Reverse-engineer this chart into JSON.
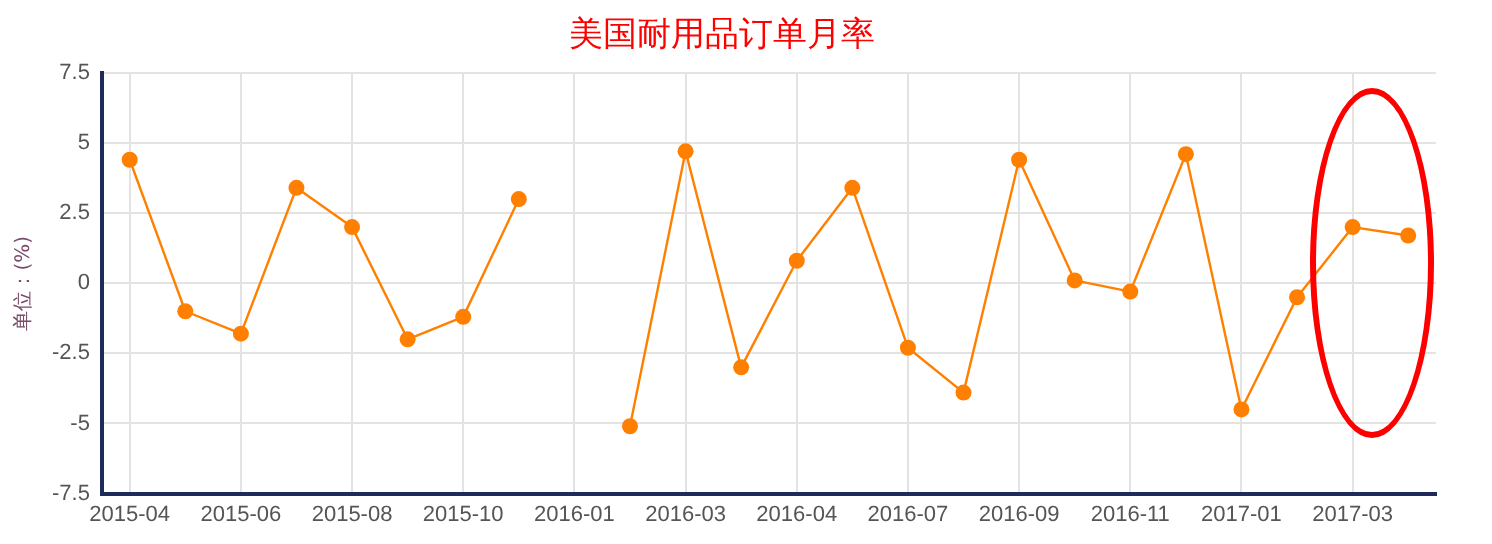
{
  "chart_data": {
    "type": "line",
    "title": "美国耐用品订单月率",
    "ylabel": "单位：(%)",
    "categories": [
      "2015-04",
      null,
      "2015-06",
      null,
      "2015-08",
      null,
      "2015-10",
      null,
      "2016-01",
      null,
      "2016-03",
      null,
      "2016-04",
      null,
      "2016-07",
      null,
      "2016-09",
      null,
      "2016-11",
      null,
      "2017-01",
      null,
      "2017-03",
      null
    ],
    "series": [
      {
        "color": "#ff8000",
        "values": [
          4.4,
          -1.0,
          -1.8,
          3.4,
          2.0,
          -2.0,
          -1.2,
          3.0,
          null,
          -5.1,
          4.7,
          -3.0,
          0.8,
          3.4,
          -2.3,
          -3.9,
          4.4,
          0.1,
          -0.3,
          4.6,
          -4.5,
          -0.5,
          2.0,
          1.7
        ]
      }
    ],
    "ylim": [
      -7.5,
      7.5
    ],
    "yticks": [
      -7.5,
      -5,
      -2.5,
      0,
      2.5,
      5,
      7.5
    ],
    "grid": true,
    "legend": false,
    "marker": "circle",
    "line_style": "solid"
  }
}
